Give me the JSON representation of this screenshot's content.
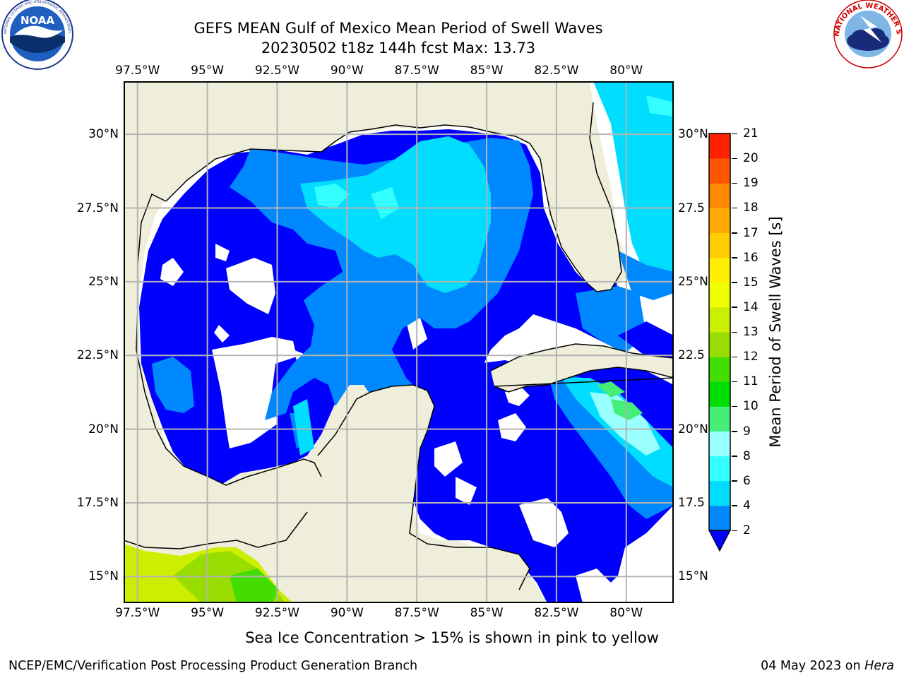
{
  "header": {
    "title_line1": "GEFS MEAN Gulf of Mexico Mean Period of Swell Waves",
    "title_line2": "20230502 t18z 144h fcst   Max: 13.73"
  },
  "logos": {
    "left": "NOAA logo",
    "right": "National Weather Service logo",
    "noaa_text": "NOAA",
    "noaa_ring_text": "NATIONAL OCEANIC AND ATMOSPHERIC ADMINISTRATION · U.S. DEPARTMENT OF COMMERCE",
    "nws_ring_text": "NATIONAL WEATHER SERVICE"
  },
  "map": {
    "lon_ticks": [
      "97.5°W",
      "95°W",
      "92.5°W",
      "90°W",
      "87.5°W",
      "85°W",
      "82.5°W",
      "80°W"
    ],
    "lon_values": [
      -97.5,
      -95,
      -92.5,
      -90,
      -87.5,
      -85,
      -82.5,
      -80
    ],
    "lat_ticks_left": [
      "30°N",
      "27.5°N",
      "25°N",
      "22.5°N",
      "20°N",
      "17.5°N",
      "15°N"
    ],
    "lat_ticks_right": [
      "30°N",
      "27.5",
      "25°N",
      "22.5",
      "20°N",
      "17.5",
      "15°N"
    ],
    "lat_values": [
      30,
      27.5,
      25,
      22.5,
      20,
      17.5,
      15
    ],
    "extent": {
      "lon_min": -98,
      "lon_max": -78.3,
      "lat_min": 14.1,
      "lat_max": 31.8
    },
    "land_color": "#efeedb",
    "ocean_missing_color": "#ffffff",
    "grid_color": "#b4b4b4"
  },
  "colorbar": {
    "label": "Mean Period of Swell Waves [s]",
    "ticks": [
      "2",
      "4",
      "6",
      "8",
      "9",
      "10",
      "11",
      "12",
      "13",
      "14",
      "15",
      "16",
      "17",
      "18",
      "19",
      "20",
      "21"
    ],
    "colors": [
      "#0033ff",
      "#0088ff",
      "#00ddff",
      "#33ffff",
      "#99ffff",
      "#44ee77",
      "#00dd00",
      "#44dd00",
      "#99dd00",
      "#ccee00",
      "#eeff00",
      "#ffee00",
      "#ffcc00",
      "#ffaa00",
      "#ff8800",
      "#ff5500",
      "#ff2200",
      "#ff0000"
    ],
    "under_color": "#0000ff"
  },
  "note": "Sea Ice Concentration > 15% is shown in pink to yellow",
  "footer": {
    "left": "NCEP/EMC/Verification Post Processing Product Generation Branch",
    "date": "04 May 2023 on ",
    "host": "Hera"
  }
}
